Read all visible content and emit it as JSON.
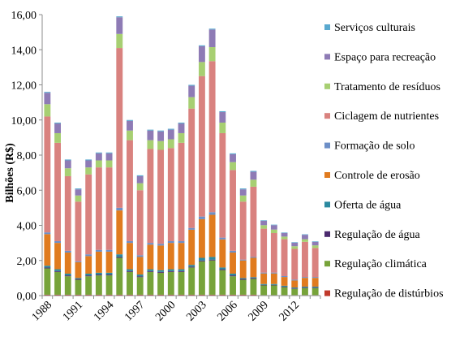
{
  "chart_data": {
    "type": "bar",
    "stacked": true,
    "ylabel": "Bilhões (R$)",
    "ylim": [
      0,
      16
    ],
    "yticks": [
      "0,00",
      "2,00",
      "4,00",
      "6,00",
      "8,00",
      "10,00",
      "12,00",
      "14,00",
      "16,00"
    ],
    "grid": false,
    "legend_position": "right",
    "x_tick_labels": [
      "1988",
      "1991",
      "1994",
      "1997",
      "2000",
      "2003",
      "2006",
      "2009",
      "2012"
    ],
    "categories": [
      "1988",
      "1989",
      "1990",
      "1991",
      "1992",
      "1993",
      "1994",
      "1995",
      "1996",
      "1997",
      "1998",
      "1999",
      "2000",
      "2001",
      "2002",
      "2003",
      "2004",
      "2005",
      "2006",
      "2007",
      "2008",
      "2009",
      "2010",
      "2011",
      "2012",
      "2013",
      "2014"
    ],
    "series": [
      {
        "name": "Regulação de distúrbios",
        "color": "#c0392b",
        "values": [
          0.05,
          0.05,
          0.05,
          0.05,
          0.05,
          0.05,
          0.05,
          0.05,
          0.05,
          0.05,
          0.05,
          0.05,
          0.05,
          0.05,
          0.05,
          0.05,
          0.05,
          0.05,
          0.05,
          0.05,
          0.05,
          0.03,
          0.03,
          0.03,
          0.03,
          0.03,
          0.03
        ]
      },
      {
        "name": "Regulação climática",
        "color": "#77a33a",
        "values": [
          1.5,
          1.3,
          1.05,
          0.85,
          1.05,
          1.1,
          1.1,
          2.1,
          1.3,
          1.0,
          1.3,
          1.25,
          1.3,
          1.3,
          1.55,
          1.9,
          1.95,
          1.4,
          1.05,
          0.85,
          0.9,
          0.55,
          0.55,
          0.45,
          0.35,
          0.4,
          0.4
        ]
      },
      {
        "name": "Regulação de água",
        "color": "#4b2a6e",
        "values": [
          0.05,
          0.05,
          0.05,
          0.05,
          0.05,
          0.05,
          0.05,
          0.05,
          0.05,
          0.05,
          0.05,
          0.05,
          0.05,
          0.05,
          0.05,
          0.05,
          0.05,
          0.05,
          0.05,
          0.05,
          0.05,
          0.03,
          0.03,
          0.03,
          0.03,
          0.03,
          0.03
        ]
      },
      {
        "name": "Oferta de água",
        "color": "#2b8aa0",
        "values": [
          0.1,
          0.1,
          0.1,
          0.05,
          0.1,
          0.1,
          0.1,
          0.15,
          0.1,
          0.1,
          0.1,
          0.1,
          0.1,
          0.1,
          0.1,
          0.15,
          0.15,
          0.1,
          0.1,
          0.05,
          0.05,
          0.05,
          0.05,
          0.05,
          0.05,
          0.05,
          0.05
        ]
      },
      {
        "name": "Controle de erosão",
        "color": "#e07b1f",
        "values": [
          1.8,
          1.5,
          1.2,
          0.9,
          1.0,
          1.2,
          1.2,
          2.5,
          1.5,
          1.0,
          1.4,
          1.4,
          1.5,
          1.5,
          2.0,
          2.2,
          2.4,
          1.6,
          1.2,
          1.0,
          1.1,
          0.6,
          0.6,
          0.5,
          0.4,
          0.5,
          0.5
        ]
      },
      {
        "name": "Formação de solo",
        "color": "#6d8fc7",
        "values": [
          0.1,
          0.1,
          0.1,
          0.05,
          0.1,
          0.1,
          0.1,
          0.15,
          0.1,
          0.1,
          0.1,
          0.1,
          0.1,
          0.1,
          0.1,
          0.15,
          0.15,
          0.1,
          0.1,
          0.05,
          0.05,
          0.05,
          0.05,
          0.05,
          0.05,
          0.05,
          0.05
        ]
      },
      {
        "name": "Ciclagem de nutrientes",
        "color": "#d9827f",
        "values": [
          6.6,
          5.6,
          4.25,
          3.4,
          4.55,
          4.7,
          4.7,
          9.1,
          5.75,
          3.7,
          5.35,
          5.35,
          5.3,
          5.6,
          6.8,
          8.0,
          8.6,
          5.95,
          4.6,
          3.3,
          4.0,
          2.5,
          2.25,
          2.1,
          1.75,
          2.0,
          1.65
        ]
      },
      {
        "name": "Tratamento de resíduos",
        "color": "#a7cf72",
        "values": [
          0.7,
          0.55,
          0.45,
          0.35,
          0.4,
          0.4,
          0.4,
          0.8,
          0.55,
          0.4,
          0.5,
          0.5,
          0.5,
          0.55,
          0.65,
          0.8,
          0.8,
          0.6,
          0.45,
          0.35,
          0.4,
          0.2,
          0.2,
          0.15,
          0.15,
          0.15,
          0.15
        ]
      },
      {
        "name": "Espaço para recreação",
        "color": "#8e7bb5",
        "values": [
          0.65,
          0.55,
          0.45,
          0.35,
          0.4,
          0.4,
          0.4,
          0.95,
          0.55,
          0.4,
          0.55,
          0.55,
          0.55,
          0.55,
          0.65,
          0.9,
          1.0,
          0.6,
          0.45,
          0.35,
          0.45,
          0.25,
          0.25,
          0.2,
          0.2,
          0.25,
          0.2
        ]
      },
      {
        "name": "Serviços culturais",
        "color": "#5aa9cf",
        "values": [
          0.05,
          0.05,
          0.05,
          0.05,
          0.05,
          0.05,
          0.05,
          0.05,
          0.05,
          0.05,
          0.05,
          0.05,
          0.05,
          0.05,
          0.05,
          0.05,
          0.05,
          0.05,
          0.05,
          0.05,
          0.05,
          0.03,
          0.03,
          0.03,
          0.03,
          0.03,
          0.03
        ]
      }
    ]
  }
}
